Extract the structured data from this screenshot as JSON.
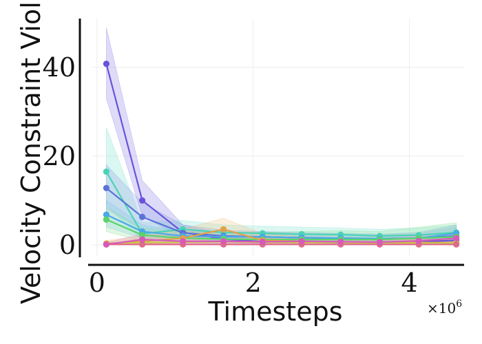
{
  "chart_data": {
    "type": "line",
    "xlabel": "Timesteps",
    "ylabel": "Velocity Constraint Violation",
    "x_multiplier_label": "×10",
    "x_multiplier_exp": "6",
    "xlim": [
      -0.06,
      4.7
    ],
    "ylim": [
      -2.5,
      51
    ],
    "xticks": [
      0,
      2,
      4
    ],
    "yticks": [
      0,
      20,
      40
    ],
    "x": [
      0.12,
      0.58,
      1.1,
      1.62,
      2.12,
      2.62,
      3.12,
      3.62,
      4.12,
      4.6
    ],
    "grid": true,
    "series": [
      {
        "color": "#6a52d9",
        "fill": "#8a7ce6",
        "values": [
          40.8,
          10,
          2.8,
          1.3,
          0.7,
          0.6,
          0.5,
          0.5,
          0.7,
          1.0
        ],
        "lower": [
          33,
          6.5,
          1.5,
          0.6,
          0.3,
          0.3,
          0.2,
          0.2,
          0.3,
          0.4
        ],
        "upper": [
          49,
          14.5,
          4.5,
          2.5,
          1.5,
          1.2,
          1.0,
          1.0,
          1.5,
          2.5
        ]
      },
      {
        "color": "#4bd3b7",
        "fill": "#7fe3cf",
        "values": [
          16.5,
          2.5,
          3.5,
          2.8,
          2.6,
          2.4,
          2.3,
          2.0,
          2.2,
          2.8
        ],
        "lower": [
          9,
          1.0,
          1.5,
          1.2,
          1.2,
          1.0,
          1.0,
          0.8,
          1.0,
          1.2
        ],
        "upper": [
          26.5,
          5,
          5.5,
          4.5,
          4.2,
          4.0,
          3.8,
          3.5,
          3.8,
          4.5
        ]
      },
      {
        "color": "#5b73d6",
        "fill": "#8c9ee6",
        "values": [
          12.8,
          6.3,
          2.7,
          2.0,
          1.8,
          1.6,
          1.5,
          1.3,
          1.5,
          2.0
        ],
        "lower": [
          8,
          3.5,
          1.2,
          0.9,
          0.8,
          0.7,
          0.6,
          0.5,
          0.6,
          0.8
        ],
        "upper": [
          18,
          9.5,
          4.5,
          3.3,
          3.0,
          2.8,
          2.6,
          2.4,
          2.8,
          4.5
        ]
      },
      {
        "color": "#4aa8e8",
        "fill": "#86c5ef",
        "values": [
          6.8,
          3.0,
          2.0,
          1.8,
          1.8,
          1.6,
          1.5,
          1.4,
          1.5,
          2.6
        ],
        "lower": [
          4,
          1.5,
          1.0,
          0.8,
          0.8,
          0.7,
          0.7,
          0.6,
          0.6,
          1.0
        ],
        "upper": [
          10,
          4.5,
          3.0,
          2.8,
          2.8,
          2.5,
          2.4,
          2.2,
          2.5,
          4.0
        ]
      },
      {
        "color": "#5ad46a",
        "fill": "#95e49f",
        "values": [
          5.7,
          2.2,
          1.5,
          1.3,
          1.2,
          1.2,
          1.2,
          1.2,
          1.5,
          1.8
        ],
        "lower": [
          3,
          0.8,
          0.5,
          0.4,
          0.4,
          0.4,
          0.4,
          0.4,
          0.5,
          0.6
        ],
        "upper": [
          8.5,
          3.8,
          3.0,
          2.8,
          2.8,
          3.0,
          3.2,
          3.0,
          4.0,
          5.0
        ]
      },
      {
        "color": "#e0a24a",
        "fill": "#efc58a",
        "values": [
          0.3,
          0.8,
          1.5,
          3.5,
          1.0,
          0.8,
          0.6,
          0.5,
          0.5,
          0.5
        ],
        "lower": [
          0,
          0.2,
          0.5,
          1.5,
          0.3,
          0.2,
          0.2,
          0.1,
          0.1,
          0.1
        ],
        "upper": [
          1.0,
          2.0,
          3.5,
          6.0,
          2.5,
          1.8,
          1.5,
          1.2,
          1.2,
          1.2
        ]
      },
      {
        "color": "#c9c94a",
        "fill": "#e0e08c",
        "values": [
          0.2,
          0.5,
          0.6,
          0.7,
          0.6,
          0.5,
          0.5,
          0.4,
          0.4,
          0.4
        ],
        "lower": [
          0,
          0.1,
          0.2,
          0.2,
          0.2,
          0.1,
          0.1,
          0.1,
          0.1,
          0.1
        ],
        "upper": [
          0.8,
          1.5,
          1.8,
          1.8,
          1.6,
          1.4,
          1.4,
          1.2,
          1.2,
          1.2
        ]
      },
      {
        "color": "#e06a8a",
        "fill": "#ef9fb5",
        "values": [
          0.1,
          0.1,
          0.1,
          0.1,
          0.1,
          0.1,
          0.1,
          0.1,
          0.1,
          0.1
        ],
        "lower": [
          0,
          0,
          0,
          0,
          0,
          0,
          0,
          0,
          0,
          0
        ],
        "upper": [
          0.4,
          0.4,
          0.4,
          0.4,
          0.4,
          0.4,
          0.4,
          0.4,
          0.4,
          0.4
        ]
      },
      {
        "color": "#d65ab8",
        "fill": "#e794d3",
        "values": [
          0.1,
          1.2,
          0.8,
          0.8,
          0.7,
          0.8,
          0.7,
          0.6,
          0.9,
          1.5
        ],
        "lower": [
          0,
          0.3,
          0.2,
          0.2,
          0.2,
          0.2,
          0.2,
          0.2,
          0.3,
          0.5
        ],
        "upper": [
          0.5,
          2.5,
          1.8,
          1.8,
          1.6,
          1.8,
          1.6,
          1.5,
          2.0,
          3.0
        ]
      }
    ]
  }
}
